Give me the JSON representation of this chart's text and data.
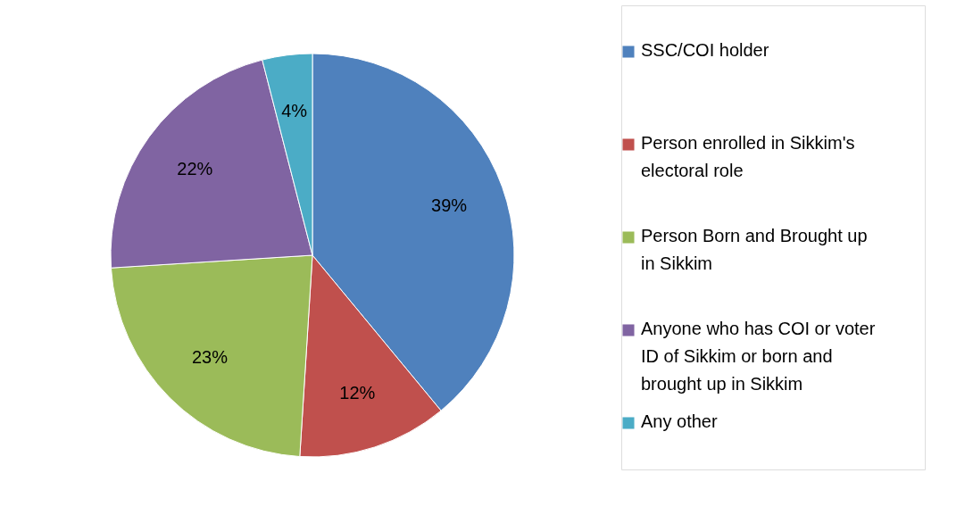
{
  "chart_data": {
    "type": "pie",
    "categories": [
      "SSC/COI holder",
      "Person enrolled in Sikkim's electoral role",
      "Person Born and Brought up in Sikkim",
      "Anyone who has COI or voter ID of Sikkim or born and brought up in Sikkim",
      "Any other"
    ],
    "values": [
      39,
      12,
      23,
      22,
      4
    ],
    "colors": [
      "#4f81bd",
      "#c0504d",
      "#9bbb59",
      "#8064a2",
      "#4bacc6"
    ],
    "data_labels": true,
    "value_labels": [
      "39%",
      "12%",
      "23%",
      "22%",
      "4%"
    ],
    "legend": "right"
  }
}
